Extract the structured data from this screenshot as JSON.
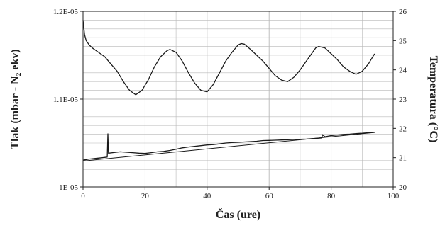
{
  "chart_data": {
    "type": "line",
    "xlabel": "Čas (ure)",
    "ylabel_left": "Tlak (mbar - N₂ ekv)",
    "ylabel_right": "Temperatura (°C)",
    "x_range": [
      0,
      100
    ],
    "x_ticks": [
      "0",
      "20",
      "40",
      "60",
      "80",
      "100"
    ],
    "y_left_range": [
      1e-05,
      1.2e-05
    ],
    "y_left_ticks": [
      "1E-05",
      "1.1E-05",
      "1.2E-05"
    ],
    "y_right_range": [
      20,
      26
    ],
    "y_right_ticks": [
      "20",
      "21",
      "22",
      "23",
      "24",
      "25",
      "26"
    ],
    "grid": true,
    "series": [
      {
        "axis": "right",
        "x": [
          0,
          0.5,
          1,
          2,
          3,
          5,
          7,
          9,
          11,
          13,
          15,
          17,
          19,
          21,
          23,
          25,
          27,
          28,
          30,
          32,
          34,
          36,
          38,
          40,
          42,
          44,
          46,
          48,
          50,
          51,
          52,
          54,
          56,
          58,
          60,
          62,
          64,
          66,
          68,
          70,
          72,
          74,
          75,
          76,
          78,
          80,
          82,
          84,
          86,
          88,
          90,
          92,
          94
        ],
        "values": [
          25.7,
          25.2,
          25.0,
          24.85,
          24.75,
          24.6,
          24.45,
          24.2,
          23.95,
          23.6,
          23.3,
          23.15,
          23.3,
          23.65,
          24.1,
          24.45,
          24.65,
          24.7,
          24.6,
          24.3,
          23.9,
          23.55,
          23.3,
          23.25,
          23.5,
          23.9,
          24.3,
          24.6,
          24.85,
          24.9,
          24.88,
          24.7,
          24.5,
          24.3,
          24.05,
          23.8,
          23.65,
          23.6,
          23.75,
          24.0,
          24.3,
          24.6,
          24.75,
          24.8,
          24.75,
          24.55,
          24.35,
          24.1,
          23.95,
          23.85,
          23.95,
          24.2,
          24.55
        ]
      },
      {
        "axis": "left",
        "x": [
          0,
          2,
          4,
          6,
          7.8,
          8,
          8.2,
          10,
          12,
          14,
          16,
          18,
          20,
          22,
          24,
          26,
          28,
          30,
          32,
          34,
          36,
          38,
          40,
          42,
          44,
          46,
          48,
          50,
          52,
          54,
          56,
          58,
          60,
          62,
          64,
          66,
          68,
          70,
          72,
          74,
          76,
          77,
          77.2,
          78,
          80,
          82,
          84,
          86,
          88,
          90,
          92,
          94
        ],
        "values": [
          1.0305e-05,
          1.0318e-05,
          1.0325e-05,
          1.0332e-05,
          1.034e-05,
          1.0605e-05,
          1.0385e-05,
          1.0392e-05,
          1.04e-05,
          1.0395e-05,
          1.039e-05,
          1.0385e-05,
          1.0382e-05,
          1.039e-05,
          1.04e-05,
          1.0405e-05,
          1.0415e-05,
          1.043e-05,
          1.0445e-05,
          1.0455e-05,
          1.0462e-05,
          1.047e-05,
          1.0478e-05,
          1.0482e-05,
          1.049e-05,
          1.05e-05,
          1.0505e-05,
          1.0508e-05,
          1.0512e-05,
          1.0516e-05,
          1.052e-05,
          1.0528e-05,
          1.053e-05,
          1.0532e-05,
          1.0535e-05,
          1.0538e-05,
          1.054e-05,
          1.0543e-05,
          1.0545e-05,
          1.055e-05,
          1.0555e-05,
          1.0558e-05,
          1.0595e-05,
          1.0572e-05,
          1.0585e-05,
          1.0592e-05,
          1.0598e-05,
          1.0602e-05,
          1.0608e-05,
          1.0612e-05,
          1.0618e-05,
          1.0622e-05
        ]
      },
      {
        "axis": "left",
        "x": [
          0,
          94
        ],
        "values": [
          1.0295e-05,
          1.062e-05
        ]
      }
    ]
  }
}
